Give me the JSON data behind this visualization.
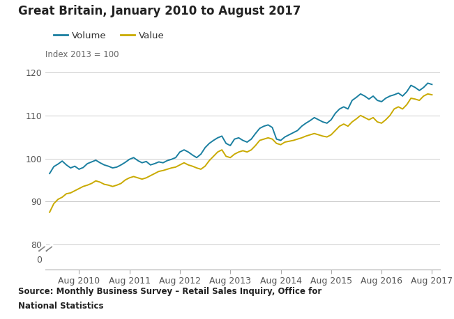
{
  "title": "Great Britain, January 2010 to August 2017",
  "ylabel": "Index 2013 = 100",
  "source_line1": "Source: Monthly Business Survey – Retail Sales Inquiry, Office for",
  "source_line2": "National Statistics",
  "legend_labels": [
    "Volume",
    "Value"
  ],
  "line_colors": [
    "#1a7fa0",
    "#c9aa00"
  ],
  "xtick_labels": [
    "Aug 2010",
    "Aug 2011",
    "Aug 2012",
    "Aug 2013",
    "Aug 2014",
    "Aug 2015",
    "Aug 2016",
    "Aug 2017"
  ],
  "volume": [
    96.5,
    98.1,
    98.7,
    99.4,
    98.5,
    97.8,
    98.2,
    97.5,
    97.9,
    98.8,
    99.2,
    99.6,
    99.0,
    98.5,
    98.2,
    97.8,
    98.0,
    98.5,
    99.1,
    99.8,
    100.2,
    99.5,
    99.0,
    99.3,
    98.5,
    98.8,
    99.2,
    99.0,
    99.5,
    99.8,
    100.2,
    101.5,
    102.0,
    101.5,
    100.8,
    100.2,
    101.0,
    102.5,
    103.5,
    104.2,
    104.8,
    105.2,
    103.5,
    103.0,
    104.5,
    104.8,
    104.2,
    103.8,
    104.5,
    105.8,
    107.0,
    107.5,
    107.8,
    107.2,
    104.5,
    104.2,
    105.0,
    105.5,
    106.0,
    106.5,
    107.5,
    108.2,
    108.8,
    109.5,
    109.0,
    108.5,
    108.2,
    109.0,
    110.5,
    111.5,
    112.0,
    111.5,
    113.5,
    114.2,
    115.0,
    114.5,
    113.8,
    114.5,
    113.5,
    113.2,
    114.0,
    114.5,
    114.8,
    115.2,
    114.5,
    115.5,
    117.0,
    116.5,
    115.8,
    116.5,
    117.5,
    117.2
  ],
  "value": [
    87.5,
    89.5,
    90.5,
    91.0,
    91.8,
    92.0,
    92.5,
    93.0,
    93.5,
    93.8,
    94.2,
    94.8,
    94.5,
    94.0,
    93.8,
    93.5,
    93.8,
    94.2,
    95.0,
    95.5,
    95.8,
    95.5,
    95.2,
    95.5,
    96.0,
    96.5,
    97.0,
    97.2,
    97.5,
    97.8,
    98.0,
    98.5,
    99.0,
    98.5,
    98.2,
    97.8,
    97.5,
    98.2,
    99.5,
    100.5,
    101.5,
    102.0,
    100.5,
    100.2,
    101.0,
    101.5,
    101.8,
    101.5,
    102.0,
    103.0,
    104.2,
    104.5,
    104.8,
    104.5,
    103.5,
    103.2,
    103.8,
    104.0,
    104.2,
    104.5,
    104.8,
    105.2,
    105.5,
    105.8,
    105.5,
    105.2,
    105.0,
    105.5,
    106.5,
    107.5,
    108.0,
    107.5,
    108.5,
    109.2,
    110.0,
    109.5,
    109.0,
    109.5,
    108.5,
    108.2,
    109.0,
    110.0,
    111.5,
    112.0,
    111.5,
    112.5,
    114.0,
    113.8,
    113.5,
    114.5,
    115.0,
    114.8
  ]
}
